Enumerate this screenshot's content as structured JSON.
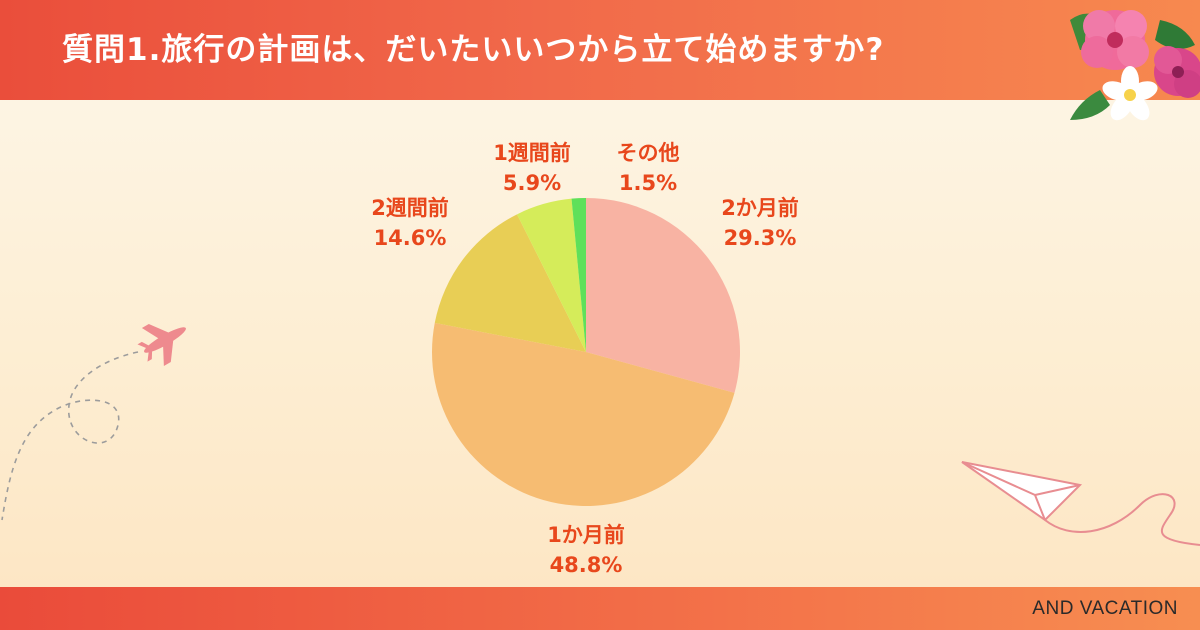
{
  "header": {
    "title": "質問1.旅行の計画は、だいたいいつから立て始めますか?"
  },
  "footer": {
    "brand": "AND VACATION"
  },
  "icons": [
    "hibiscus-flower-icon",
    "airplane-icon",
    "paper-plane-icon"
  ],
  "chart_data": {
    "type": "pie",
    "title": "質問1.旅行の計画は、だいたいいつから立て始めますか?",
    "slices": [
      {
        "label": "2か月前",
        "value": 29.3,
        "value_label": "29.3%",
        "color": "#f8b3a3"
      },
      {
        "label": "1か月前",
        "value": 48.8,
        "value_label": "48.8%",
        "color": "#f6bc72"
      },
      {
        "label": "2週間前",
        "value": 14.6,
        "value_label": "14.6%",
        "color": "#e8ce55"
      },
      {
        "label": "1週間前",
        "value": 5.9,
        "value_label": "5.9%",
        "color": "#d5ec5a"
      },
      {
        "label": "その他",
        "value": 1.5,
        "value_label": "1.5%",
        "color": "#5fe05a"
      }
    ],
    "start": "12 o'clock",
    "direction": "clockwise",
    "legend": "none"
  }
}
